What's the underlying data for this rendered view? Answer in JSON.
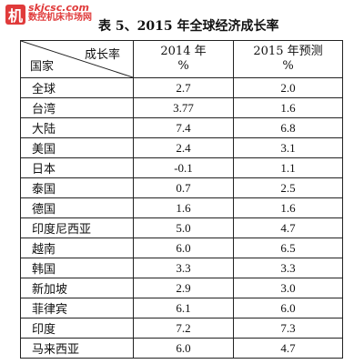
{
  "watermark": {
    "mark": "机",
    "url": "skjcsc.com",
    "name": "数控机床市场网",
    "color": "#e03b3b"
  },
  "title": "表 5、2015 年全球经济成长率",
  "table": {
    "corner_top": "成长率",
    "corner_bottom": "国家",
    "columns": [
      {
        "line1": "2014 年",
        "line2": "%"
      },
      {
        "line1": "2015 年预测",
        "line2": "%"
      }
    ],
    "rows": [
      {
        "country": "全球",
        "v2014": "2.7",
        "v2015": "2.0"
      },
      {
        "country": "台湾",
        "v2014": "3.77",
        "v2015": "1.6"
      },
      {
        "country": "大陆",
        "v2014": "7.4",
        "v2015": "6.8"
      },
      {
        "country": "美国",
        "v2014": "2.4",
        "v2015": "3.1"
      },
      {
        "country": "日本",
        "v2014": "-0.1",
        "v2015": "1.1"
      },
      {
        "country": "泰国",
        "v2014": "0.7",
        "v2015": "2.5"
      },
      {
        "country": "德国",
        "v2014": "1.6",
        "v2015": "1.6"
      },
      {
        "country": "印度尼西亚",
        "v2014": "5.0",
        "v2015": "4.7"
      },
      {
        "country": "越南",
        "v2014": "6.0",
        "v2015": "6.5"
      },
      {
        "country": "韩国",
        "v2014": "3.3",
        "v2015": "3.3"
      },
      {
        "country": "新加坡",
        "v2014": "2.9",
        "v2015": "3.0"
      },
      {
        "country": "菲律宾",
        "v2014": "6.1",
        "v2015": "6.0"
      },
      {
        "country": "印度",
        "v2014": "7.2",
        "v2015": "7.3"
      },
      {
        "country": "马来西亚",
        "v2014": "6.0",
        "v2015": "4.7"
      }
    ]
  }
}
